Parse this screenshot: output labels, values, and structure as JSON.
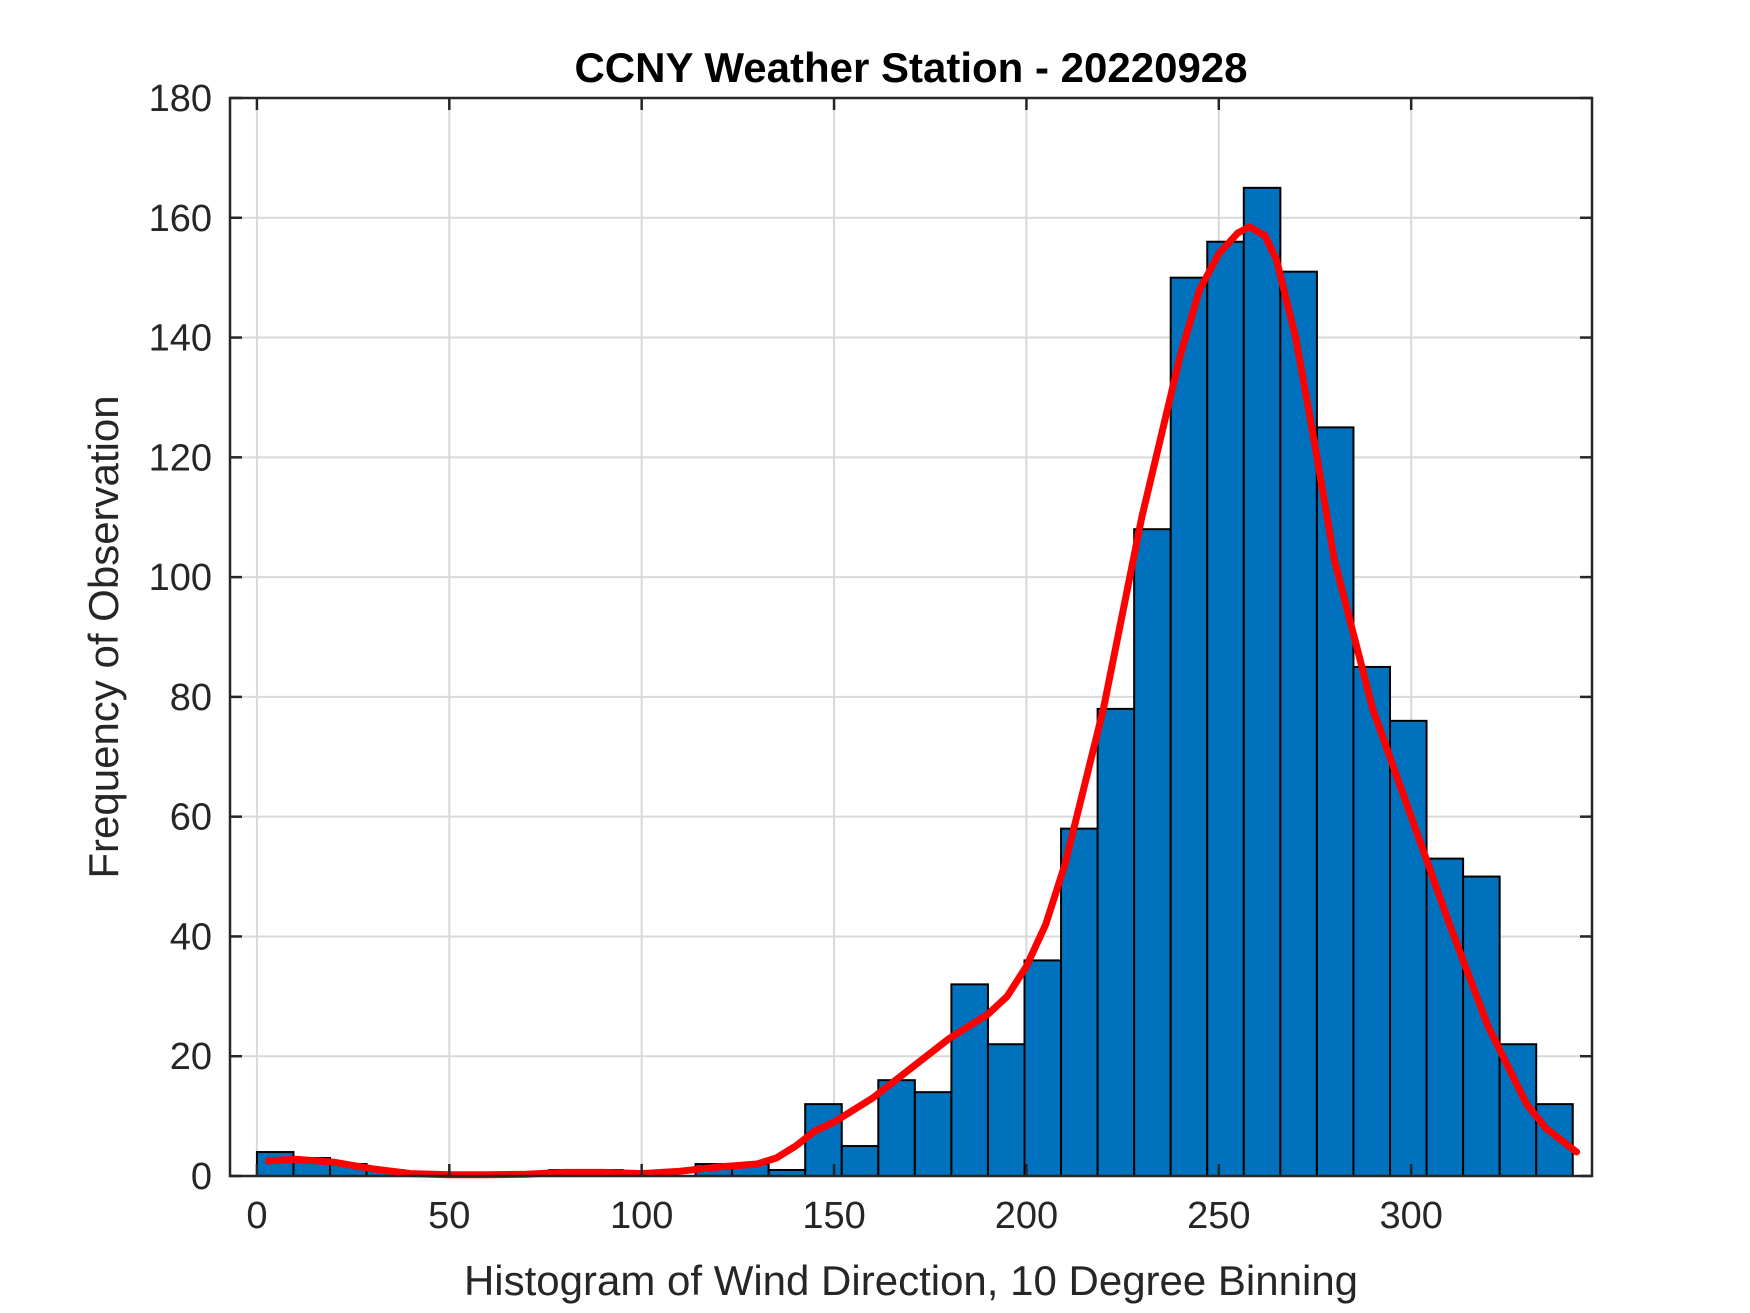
{
  "chart_data": {
    "type": "bar",
    "title": "CCNY Weather Station - 20220928",
    "xlabel": "Histogram of Wind Direction, 10 Degree Binning",
    "ylabel": "Frequency of Observation",
    "xlim": [
      -7,
      347
    ],
    "ylim": [
      0,
      180
    ],
    "x_ticks": [
      0,
      50,
      100,
      150,
      200,
      250,
      300
    ],
    "y_ticks": [
      0,
      20,
      40,
      60,
      80,
      100,
      120,
      140,
      160,
      180
    ],
    "grid": true,
    "bin_width": 9.5,
    "bin_edges": [
      0,
      9.5,
      19,
      28.5,
      38,
      47.5,
      57,
      66.5,
      76,
      85.5,
      95,
      104.5,
      114,
      123.5,
      133,
      142.5,
      152,
      161.5,
      171,
      180.5,
      190,
      199.5,
      209,
      218.5,
      228,
      237.5,
      247,
      256.5,
      266,
      275.5,
      285,
      294.5,
      304,
      313.5,
      323,
      332.5,
      342
    ],
    "values": [
      4,
      3,
      2,
      1,
      0,
      0,
      0,
      0,
      1,
      1,
      0,
      0,
      2,
      2,
      1,
      12,
      5,
      16,
      14,
      32,
      22,
      36,
      58,
      78,
      108,
      150,
      156,
      165,
      151,
      125,
      85,
      76,
      53,
      50,
      22,
      12
    ],
    "bar_color": "#0072BD",
    "edge_color": "#000000",
    "fit_line": {
      "color": "#FF0000",
      "x": [
        3,
        10,
        20,
        30,
        40,
        50,
        60,
        70,
        80,
        90,
        100,
        110,
        120,
        130,
        135,
        140,
        145,
        150,
        160,
        170,
        180,
        190,
        195,
        200,
        205,
        210,
        220,
        230,
        240,
        245,
        250,
        255,
        258,
        262,
        265,
        270,
        275,
        280,
        290,
        300,
        310,
        320,
        330,
        335,
        340,
        343
      ],
      "y": [
        2.5,
        2.8,
        2.3,
        1.2,
        0.4,
        0.2,
        0.2,
        0.3,
        0.6,
        0.6,
        0.4,
        0.8,
        1.5,
        2,
        3,
        5,
        7.5,
        9,
        13,
        18,
        23,
        27,
        30,
        35,
        42,
        52,
        78,
        110,
        137,
        148,
        154,
        157.5,
        158.5,
        157,
        153,
        140,
        122,
        103,
        78,
        60,
        42,
        25,
        12,
        8,
        5.5,
        4
      ]
    }
  }
}
